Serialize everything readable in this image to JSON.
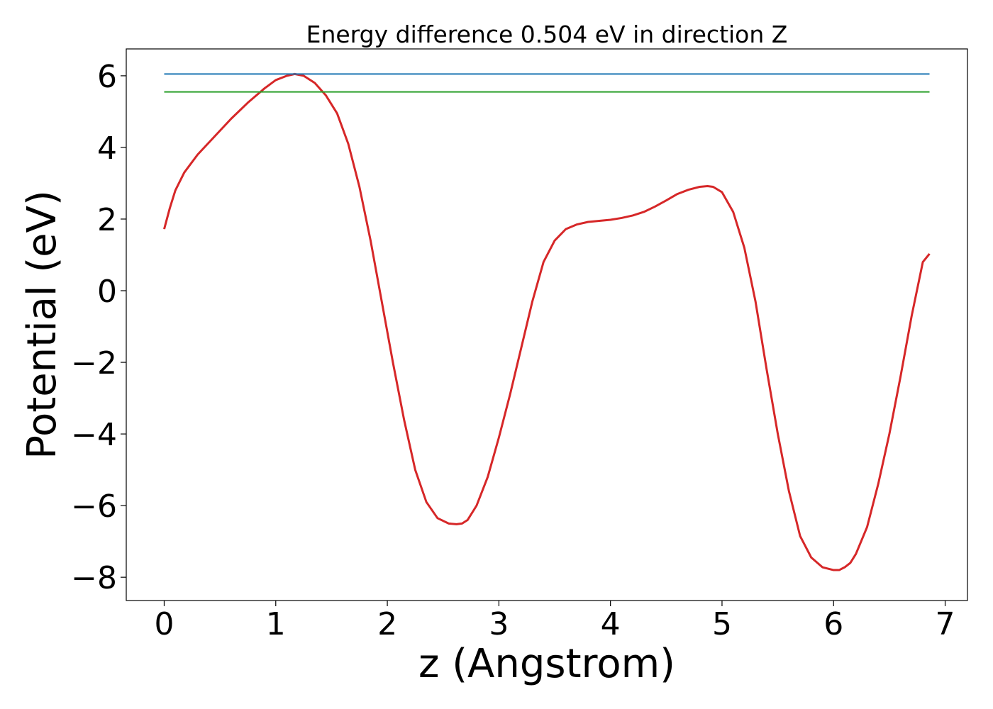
{
  "chart_data": {
    "type": "line",
    "title": "Energy difference 0.504 eV in direction Z",
    "xlabel": "z (Angstrom)",
    "ylabel": "Potential (eV)",
    "xlim": [
      -0.34,
      7.2
    ],
    "ylim": [
      -8.65,
      6.75
    ],
    "x_ticks": [
      0,
      1,
      2,
      3,
      4,
      5,
      6,
      7
    ],
    "x_tick_labels": [
      "0",
      "1",
      "2",
      "3",
      "4",
      "5",
      "6",
      "7"
    ],
    "y_ticks": [
      6,
      4,
      2,
      0,
      -2,
      -4,
      -6,
      -8
    ],
    "y_tick_labels": [
      "6",
      "4",
      "2",
      "0",
      "−2",
      "−4",
      "−6",
      "−8"
    ],
    "grid": false,
    "series": [
      {
        "color": "#d62728",
        "x": [
          0,
          0.05,
          0.1,
          0.18,
          0.3,
          0.45,
          0.6,
          0.75,
          0.9,
          1.0,
          1.1,
          1.17,
          1.25,
          1.35,
          1.45,
          1.55,
          1.65,
          1.75,
          1.85,
          1.95,
          2.05,
          2.15,
          2.25,
          2.35,
          2.45,
          2.55,
          2.62,
          2.67,
          2.72,
          2.8,
          2.9,
          3.0,
          3.1,
          3.2,
          3.3,
          3.4,
          3.5,
          3.6,
          3.7,
          3.8,
          3.9,
          4.0,
          4.1,
          4.2,
          4.3,
          4.4,
          4.5,
          4.6,
          4.7,
          4.8,
          4.87,
          4.92,
          5.0,
          5.1,
          5.2,
          5.3,
          5.4,
          5.5,
          5.6,
          5.7,
          5.8,
          5.9,
          6.0,
          6.05,
          6.1,
          6.15,
          6.2,
          6.3,
          6.4,
          6.5,
          6.6,
          6.7,
          6.8,
          6.86
        ],
        "y": [
          1.72,
          2.3,
          2.8,
          3.3,
          3.8,
          4.3,
          4.8,
          5.25,
          5.65,
          5.88,
          6.0,
          6.05,
          6.0,
          5.8,
          5.45,
          4.95,
          4.1,
          2.9,
          1.4,
          -0.3,
          -2.0,
          -3.6,
          -5.0,
          -5.9,
          -6.35,
          -6.5,
          -6.52,
          -6.5,
          -6.4,
          -6.0,
          -5.2,
          -4.1,
          -2.9,
          -1.6,
          -0.3,
          0.8,
          1.4,
          1.72,
          1.85,
          1.92,
          1.95,
          1.98,
          2.03,
          2.1,
          2.2,
          2.35,
          2.52,
          2.7,
          2.82,
          2.9,
          2.92,
          2.9,
          2.75,
          2.2,
          1.2,
          -0.3,
          -2.2,
          -4.0,
          -5.6,
          -6.85,
          -7.45,
          -7.72,
          -7.8,
          -7.8,
          -7.72,
          -7.6,
          -7.35,
          -6.6,
          -5.4,
          -4.0,
          -2.4,
          -0.7,
          0.8,
          1.03
        ]
      },
      {
        "color": "#1f77b4",
        "x": [
          0,
          6.86
        ],
        "y": [
          6.05,
          6.05
        ]
      },
      {
        "color": "#2ca02c",
        "x": [
          0,
          6.86
        ],
        "y": [
          5.55,
          5.55
        ]
      }
    ]
  }
}
